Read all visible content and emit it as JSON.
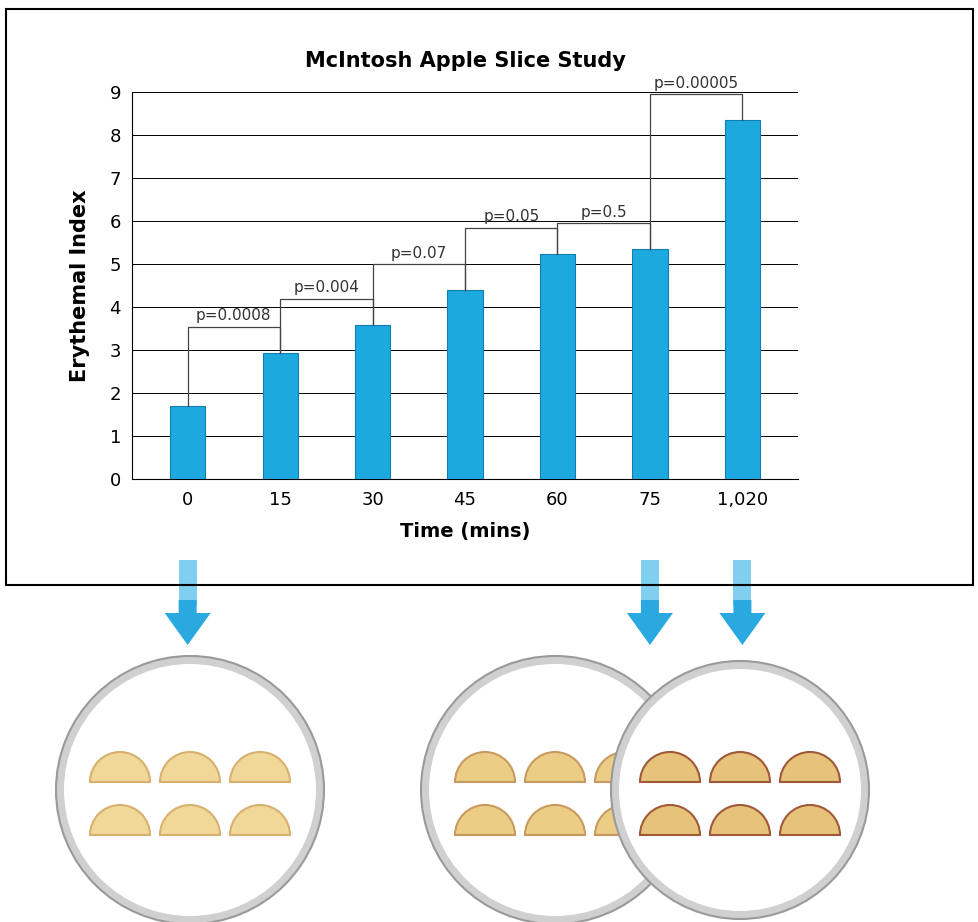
{
  "chart_data": {
    "type": "bar",
    "title": "McIntosh Apple Slice Study",
    "x_label": "Time (mins)",
    "y_label": "Erythemal Index",
    "categories": [
      "0",
      "15",
      "30",
      "45",
      "60",
      "75",
      "1,020"
    ],
    "values": [
      1.7,
      2.95,
      3.6,
      4.4,
      5.25,
      5.35,
      8.35
    ],
    "color": "#1ea8e0",
    "ylim": [
      0,
      9
    ],
    "yticks": [
      0,
      1,
      2,
      3,
      4,
      5,
      6,
      7,
      8,
      9
    ],
    "grid": true,
    "annotations": [
      {
        "from": "0",
        "to": "15",
        "text": "p=0.0008"
      },
      {
        "from": "15",
        "to": "30",
        "text": "p=0.004"
      },
      {
        "from": "30",
        "to": "45",
        "text": "p=0.07"
      },
      {
        "from": "45",
        "to": "60",
        "text": "p=0.05"
      },
      {
        "from": "60",
        "to": "75",
        "text": "p=0.5"
      },
      {
        "from": "75",
        "to": "1,020",
        "text": "p=0.00005"
      }
    ]
  }
}
